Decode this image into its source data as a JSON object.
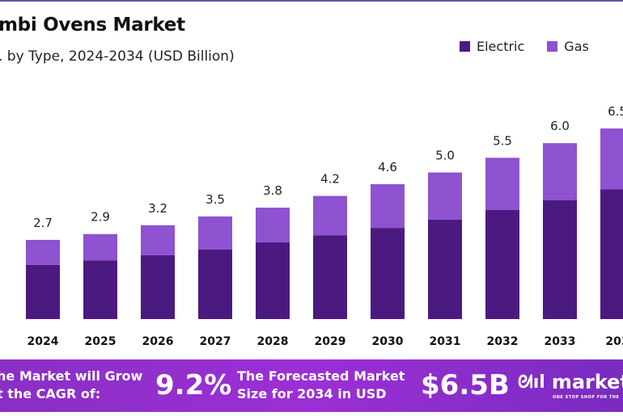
{
  "chart_data": {
    "type": "bar",
    "stacked": true,
    "title": "mbi Ovens Market",
    "subtitle": ". by Type, 2024-2034 (USD Billion)",
    "categories": [
      "2024",
      "2025",
      "2026",
      "2027",
      "2028",
      "2029",
      "2030",
      "2031",
      "2032",
      "2033",
      "203"
    ],
    "series": [
      {
        "name": "Electric",
        "color": "#4b1a80",
        "values": [
          1.85,
          2.0,
          2.18,
          2.37,
          2.62,
          2.86,
          3.11,
          3.39,
          3.72,
          4.05,
          4.43
        ]
      },
      {
        "name": "Gas",
        "color": "#8f52d0",
        "values": [
          0.85,
          0.9,
          1.02,
          1.13,
          1.18,
          1.34,
          1.49,
          1.61,
          1.78,
          1.95,
          2.07
        ]
      }
    ],
    "totals": [
      "2.7",
      "2.9",
      "3.2",
      "3.5",
      "3.8",
      "4.2",
      "4.6",
      "5.0",
      "5.5",
      "6.0",
      "6.5"
    ],
    "legend_position": "top-right",
    "grid": false
  },
  "banner": {
    "cagr_text_line1": "he Market will Grow",
    "cagr_text_line2": "t the CAGR of:",
    "cagr_value": "9.2%",
    "forecast_text_line1": "The Forecasted Market",
    "forecast_text_line2": "Size for 2034 in USD",
    "forecast_value": "$6.5B",
    "logo_text": "market.",
    "logo_tagline": "ONE STOP SHOP FOR THE"
  }
}
